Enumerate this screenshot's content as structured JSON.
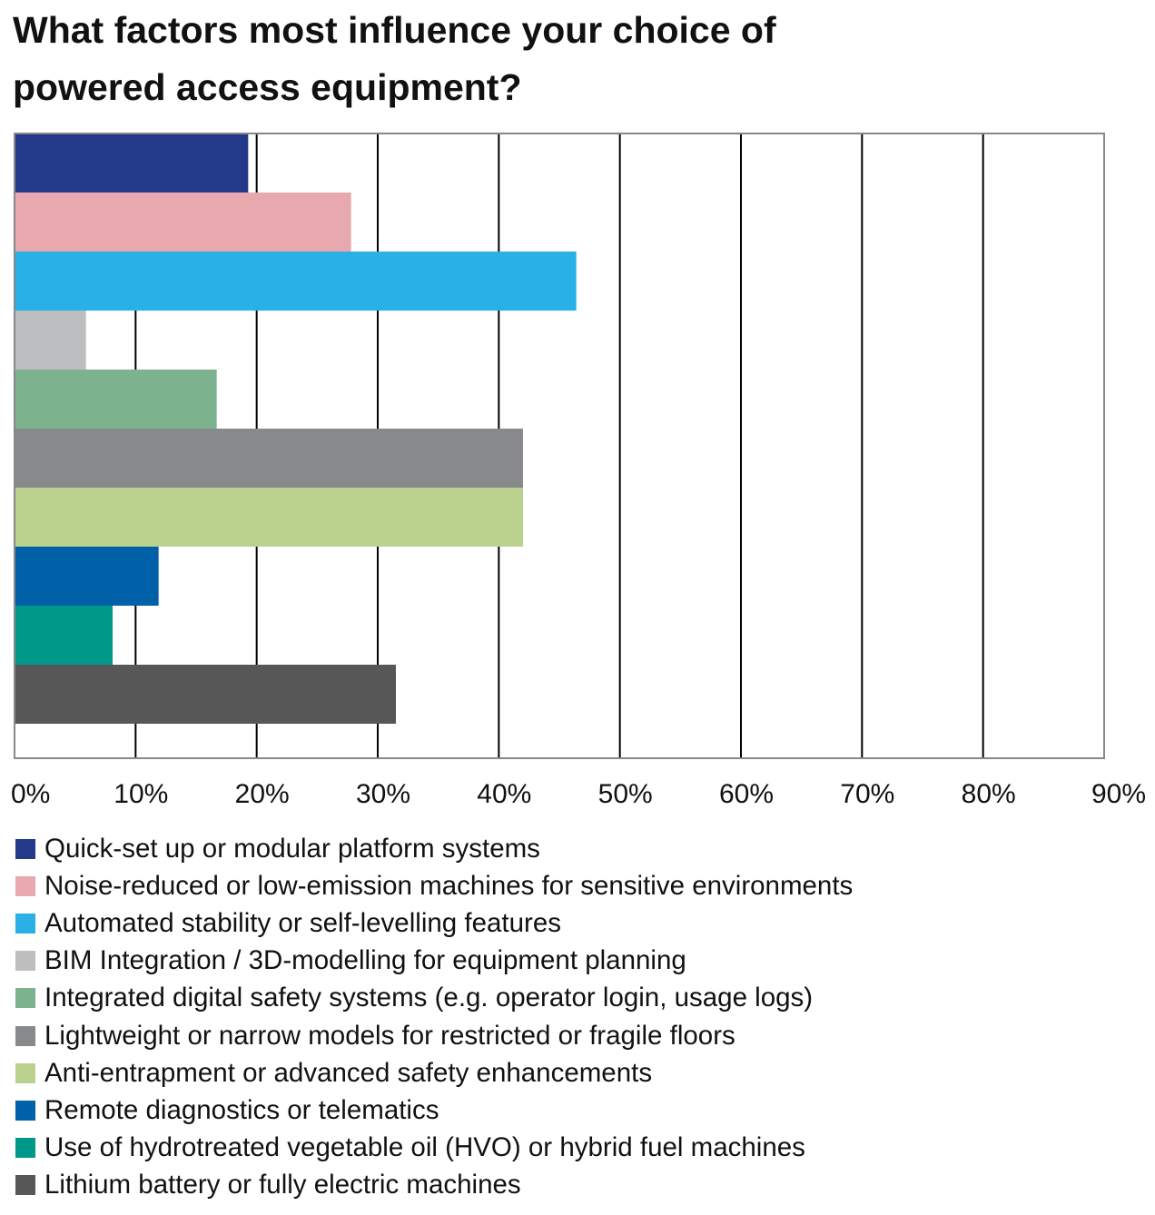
{
  "chart_data": {
    "type": "bar",
    "orientation": "horizontal",
    "title": "What factors most influence your choice of powered access equipment?",
    "xlabel": "",
    "ylabel": "",
    "xlim": [
      0,
      90
    ],
    "x_ticks": [
      "0%",
      "10%",
      "20%",
      "30%",
      "40%",
      "50%",
      "60%",
      "70%",
      "80%",
      "90%"
    ],
    "grid": "vertical",
    "legend_position": "bottom",
    "series": [
      {
        "name": "Quick-set up or modular platform systems",
        "value": 19.3,
        "color": "#233a8a"
      },
      {
        "name": "Noise-reduced or low-emission machines for sensitive environments",
        "value": 27.8,
        "color": "#e8a9ae"
      },
      {
        "name": "Automated stability or self-levelling features",
        "value": 46.4,
        "color": "#29b0e6"
      },
      {
        "name": "BIM Integration / 3D-modelling for equipment planning",
        "value": 5.9,
        "color": "#bdbec0"
      },
      {
        "name": "Integrated digital safety systems (e.g. operator login, usage logs)",
        "value": 16.7,
        "color": "#7db28e"
      },
      {
        "name": "Lightweight or narrow models for restricted or fragile floors",
        "value": 42.0,
        "color": "#87898b"
      },
      {
        "name": "Anti-entrapment or advanced safety enhancements",
        "value": 42.0,
        "color": "#bbd28e"
      },
      {
        "name": "Remote diagnostics or telematics",
        "value": 11.9,
        "color": "#0060a8"
      },
      {
        "name": "Use of hydrotreated vegetable oil (HVO) or hybrid fuel machines",
        "value": 8.1,
        "color": "#009889"
      },
      {
        "name": "Lithium battery or fully electric machines",
        "value": 31.5,
        "color": "#575757"
      }
    ]
  }
}
